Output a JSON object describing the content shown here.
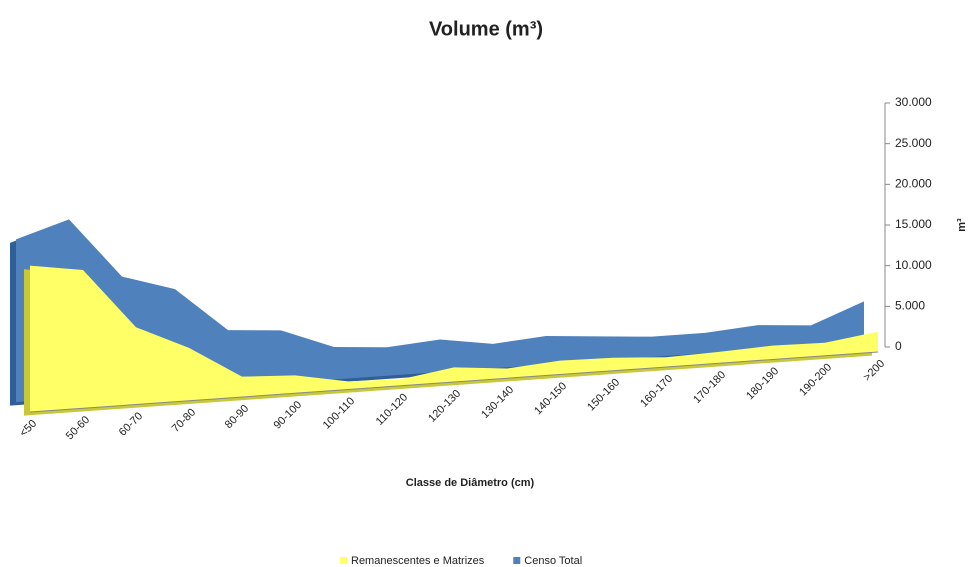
{
  "chart_data": {
    "type": "area3d",
    "title": "Volume (m³)",
    "x_label": "Classe de Diâmetro (cm)",
    "y_label": "m³",
    "categories": [
      "<50",
      "50-60",
      "60-70",
      "70-80",
      "80-90",
      "90-100",
      "100-110",
      "110-120",
      "120-130",
      "130-140",
      "140-150",
      "150-160",
      "160-170",
      "170-180",
      "180-190",
      "190-200",
      ">200"
    ],
    "series": [
      {
        "name": "Remanescentes e Matrizes",
        "color": "#ffff66",
        "side": "#c8c83a",
        "values": [
          18000,
          17000,
          9500,
          6500,
          2500,
          2200,
          1000,
          800,
          1800,
          1200,
          1700,
          1600,
          1200,
          1400,
          1700,
          1600,
          2500
        ]
      },
      {
        "name": "Censo Total",
        "color": "#4f81bd",
        "side": "#2f5e98",
        "values": [
          20000,
          22000,
          14500,
          12500,
          7000,
          6500,
          4000,
          3500,
          4000,
          3000,
          3500,
          3000,
          2500,
          2500,
          3000,
          2500,
          5000
        ]
      }
    ],
    "ylim": [
      0,
      30000
    ],
    "yticks": [
      0,
      {
        "value": 5000,
        "label": "5.000"
      },
      {
        "value": 10000,
        "label": "10.000"
      },
      {
        "value": 15000,
        "label": "15.000"
      },
      {
        "value": 20000,
        "label": "20.000"
      },
      {
        "value": 25000,
        "label": "25.000"
      },
      {
        "value": 30000,
        "label": "30.000"
      }
    ],
    "legend": "bottom"
  }
}
